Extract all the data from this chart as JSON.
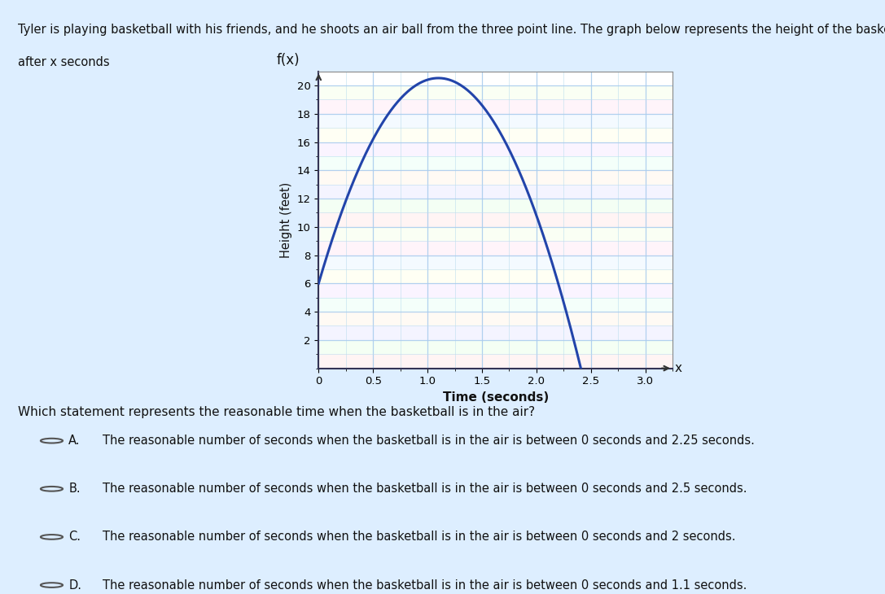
{
  "title": "f(x)",
  "ylabel": "Height (feet)",
  "xlabel": "Time (seconds)",
  "xlim": [
    0,
    3.25
  ],
  "ylim": [
    0,
    21
  ],
  "xticks": [
    0,
    0.5,
    1.0,
    1.5,
    2.0,
    2.5,
    3.0
  ],
  "yticks": [
    2,
    4,
    6,
    8,
    10,
    12,
    14,
    16,
    18,
    20
  ],
  "curve_color": "#2244aa",
  "curve_linewidth": 2.2,
  "background_color": "#e8f4f8",
  "header_text_line1": "Tyler is playing basketball with his friends, and he shoots an air ball from the three point line. The graph below represents the height of the basketball",
  "header_text_line2": "after x seconds",
  "question_text": "Which statement represents the reasonable time when the basketball is in the air?",
  "options": [
    "The reasonable number of seconds when the basketball is in the air is between 0 seconds and 2.25 seconds.",
    "The reasonable number of seconds when the basketball is in the air is between 0 seconds and 2.5 seconds.",
    "The reasonable number of seconds when the basketball is in the air is between 0 seconds and 2 seconds.",
    "The reasonable number of seconds when the basketball is in the air is between 0 seconds and 1.1 seconds."
  ],
  "option_labels": [
    "A.",
    "B.",
    "C.",
    "D."
  ],
  "parabola_a": -12.0,
  "parabola_b": 26.4,
  "parabola_c": 6.0,
  "chart_box_color": "#666688",
  "grid_major_color": "#aaccee",
  "grid_minor_color": "#bbddee",
  "pastel_colors": [
    "#ffe8e8",
    "#e8ffe8",
    "#e8e8ff",
    "#fff4e8",
    "#e8fff4",
    "#f4e8ff",
    "#ffffe8",
    "#e8f4ff",
    "#ffe8f4",
    "#f4ffe8"
  ]
}
